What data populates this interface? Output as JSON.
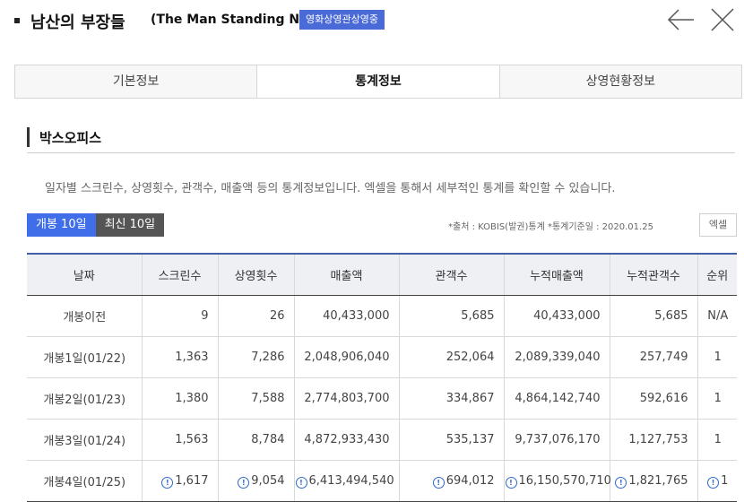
{
  "header": {
    "title_ko": "남산의 부장들",
    "title_en": "(The Man Standing Next)",
    "badge": "영화상영관상영중"
  },
  "tabs": [
    {
      "label": "기본정보",
      "active": false
    },
    {
      "label": "통계정보",
      "active": true
    },
    {
      "label": "상영현황정보",
      "active": false
    }
  ],
  "section": {
    "title": "박스오피스",
    "description": "일자별 스크린수, 상영횟수, 관객수, 매출액 등의 통계정보입니다. 엑셀을 통해서 세부적인 통계를 확인할 수 있습니다."
  },
  "toggle": {
    "opening": "개봉 10일",
    "latest": "최신 10일"
  },
  "source_note": "*출처 : KOBIS(발권)통계   *통계기준일 : 2020.01.25",
  "excel_label": "엑셀",
  "table": {
    "headers": [
      "날짜",
      "스크린수",
      "상영횟수",
      "매출액",
      "관객수",
      "누적매출액",
      "누적관객수",
      "순위"
    ],
    "rows": [
      {
        "cells": [
          "개봉이전",
          "9",
          "26",
          "40,433,000",
          "5,685",
          "40,433,000",
          "5,685",
          "N/A"
        ],
        "info": false
      },
      {
        "cells": [
          "개봉1일(01/22)",
          "1,363",
          "7,286",
          "2,048,906,040",
          "252,064",
          "2,089,339,040",
          "257,749",
          "1"
        ],
        "info": false
      },
      {
        "cells": [
          "개봉2일(01/23)",
          "1,380",
          "7,588",
          "2,774,803,700",
          "334,867",
          "4,864,142,740",
          "592,616",
          "1"
        ],
        "info": false
      },
      {
        "cells": [
          "개봉3일(01/24)",
          "1,563",
          "8,784",
          "4,872,933,430",
          "535,137",
          "9,737,076,170",
          "1,127,753",
          "1"
        ],
        "info": false
      },
      {
        "cells": [
          "개봉4일(01/25)",
          "1,617",
          "9,054",
          "6,413,494,540",
          "694,012",
          "16,150,570,710",
          "1,821,765",
          "1"
        ],
        "info": true
      }
    ]
  },
  "colors": {
    "accent": "#3f6ee8",
    "badge": "#4a6ad8",
    "table_top": "#3f5fa8"
  },
  "icons": {
    "back": "arrow-left-icon",
    "close": "close-icon",
    "info": "info-circle-icon"
  }
}
